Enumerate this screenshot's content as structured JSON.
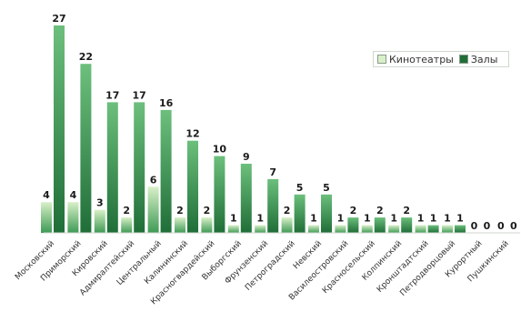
{
  "chart_data": {
    "type": "bar",
    "title": "",
    "xlabel": "",
    "ylabel": "",
    "ylim": [
      0,
      27
    ],
    "grid": false,
    "legend_position": "top-right",
    "categories": [
      "Московский",
      "Приморский",
      "Кировский",
      "Адмиралтейский",
      "Центральный",
      "Калининский",
      "Красногвардейский",
      "Выборгский",
      "Фрунзенский",
      "Петроградский",
      "Невский",
      "Василеостровский",
      "Красносельский",
      "Колпинский",
      "Кронштадтский",
      "Петродворцовый",
      "Курортный",
      "Пушкинский"
    ],
    "series": [
      {
        "name": "Кинотеатры",
        "values": [
          4,
          4,
          3,
          2,
          6,
          2,
          2,
          1,
          1,
          2,
          1,
          1,
          1,
          1,
          1,
          1,
          0,
          0
        ]
      },
      {
        "name": "Залы",
        "values": [
          27,
          22,
          17,
          17,
          16,
          12,
          10,
          9,
          7,
          5,
          5,
          2,
          2,
          2,
          1,
          1,
          0,
          0
        ]
      }
    ],
    "colors": {
      "cinemas_top": "#d8f0c8",
      "cinemas_bottom": "#3e9a55",
      "halls_top": "#6cbf7c",
      "halls_bottom": "#1f6e38",
      "label": "#1a1a1a"
    }
  }
}
